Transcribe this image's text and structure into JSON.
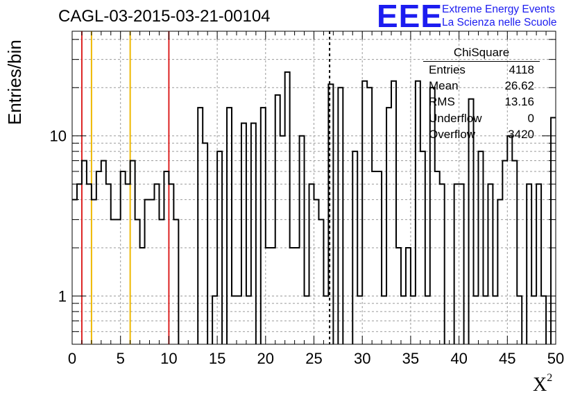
{
  "header": {
    "title": "CAGL-03-2015-03-21-00104",
    "logo_mark": "EEE",
    "logo_line1": "Extreme Energy Events",
    "logo_line2": "La Scienza nelle Scuole"
  },
  "stats_box": {
    "title": "ChiSquare",
    "rows": [
      {
        "key": "Entries",
        "value": "4118"
      },
      {
        "key": "Mean",
        "value": "26.62"
      },
      {
        "key": "RMS",
        "value": "13.16"
      },
      {
        "key": "Underflow",
        "value": "0"
      },
      {
        "key": "Overflow",
        "value": "3420"
      }
    ]
  },
  "colors": {
    "histogram": "#000000",
    "red_lines": "#dd2222",
    "yellow_lines": "#eeb800",
    "grid": "#9a9a9a"
  },
  "chart_data": {
    "type": "histogram",
    "xlabel": "X",
    "xlabel_superscript": "2",
    "ylabel": "Entries/bin",
    "xlim": [
      0,
      50
    ],
    "ylim": [
      0.5,
      45
    ],
    "log_y": true,
    "grid": true,
    "bin_width": 0.5,
    "x_ticks": [
      0,
      5,
      10,
      15,
      20,
      25,
      30,
      35,
      40,
      45,
      50
    ],
    "y_tick_labels": [
      {
        "value": 1,
        "label": "1"
      },
      {
        "value": 10,
        "label": "10"
      }
    ],
    "bin_values": [
      4,
      5,
      7,
      5,
      4,
      6,
      7,
      5,
      3,
      3,
      6,
      5,
      7,
      3,
      2,
      4,
      4,
      5,
      3,
      6,
      5,
      3,
      0,
      0,
      0,
      0,
      15,
      9,
      0,
      1,
      8,
      0,
      15,
      1,
      1,
      12,
      1,
      12,
      0,
      15,
      2,
      2,
      18,
      10,
      25,
      2,
      2,
      10,
      1,
      5,
      4,
      3,
      1,
      21,
      0,
      20,
      0,
      0,
      8,
      1,
      22,
      20,
      6,
      6,
      1,
      15,
      22,
      2,
      1,
      2,
      1,
      22,
      8,
      1,
      20,
      6,
      5,
      0,
      0,
      5,
      5,
      0,
      17,
      1,
      8,
      1,
      5,
      1,
      4,
      7,
      10,
      7,
      1,
      0,
      5,
      1,
      5,
      1,
      0,
      13
    ],
    "vertical_lines": [
      {
        "x": 1,
        "style": "red"
      },
      {
        "x": 2,
        "style": "yellow"
      },
      {
        "x": 6,
        "style": "yellow"
      },
      {
        "x": 10,
        "style": "red"
      },
      {
        "x": 26.62,
        "style": "dashed"
      }
    ]
  }
}
